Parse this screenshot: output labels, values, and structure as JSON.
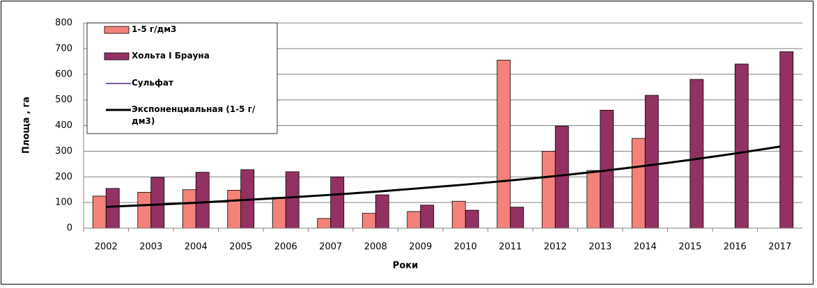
{
  "chart_data": {
    "type": "bar",
    "x_label": "Роки",
    "y_label": "Площа , га",
    "categories": [
      "2002",
      "2003",
      "2004",
      "2005",
      "2006",
      "2007",
      "2008",
      "2009",
      "2010",
      "2011",
      "2012",
      "2013",
      "2014",
      "2015",
      "2016",
      "2017"
    ],
    "series": [
      {
        "name": "1-5 г/дм3",
        "type": "bar",
        "color": "#f4827a",
        "values": [
          125,
          140,
          150,
          148,
          120,
          38,
          58,
          65,
          105,
          655,
          300,
          225,
          350,
          null,
          null,
          null
        ]
      },
      {
        "name": "Хольта І Брауна",
        "type": "bar",
        "color": "#943163",
        "values": [
          155,
          198,
          218,
          228,
          220,
          200,
          130,
          90,
          70,
          82,
          398,
          460,
          518,
          580,
          640,
          688
        ]
      },
      {
        "name": "Сульфат",
        "type": "line",
        "color": "#7a5a9a",
        "values": [
          null,
          null,
          null,
          null,
          null,
          null,
          null,
          null,
          null,
          null,
          null,
          null,
          null,
          null,
          null,
          null
        ]
      },
      {
        "name": "Экспоненциальная (1-5 г/дм3)",
        "type": "line",
        "color": "#000000",
        "values": [
          83,
          91,
          99,
          109,
          119,
          130,
          142,
          156,
          170,
          186,
          203,
          222,
          243,
          266,
          291,
          318
        ]
      }
    ],
    "ylim": [
      0,
      800
    ],
    "yticks": [
      0,
      100,
      200,
      300,
      400,
      500,
      600,
      700,
      800
    ],
    "grid": true
  }
}
